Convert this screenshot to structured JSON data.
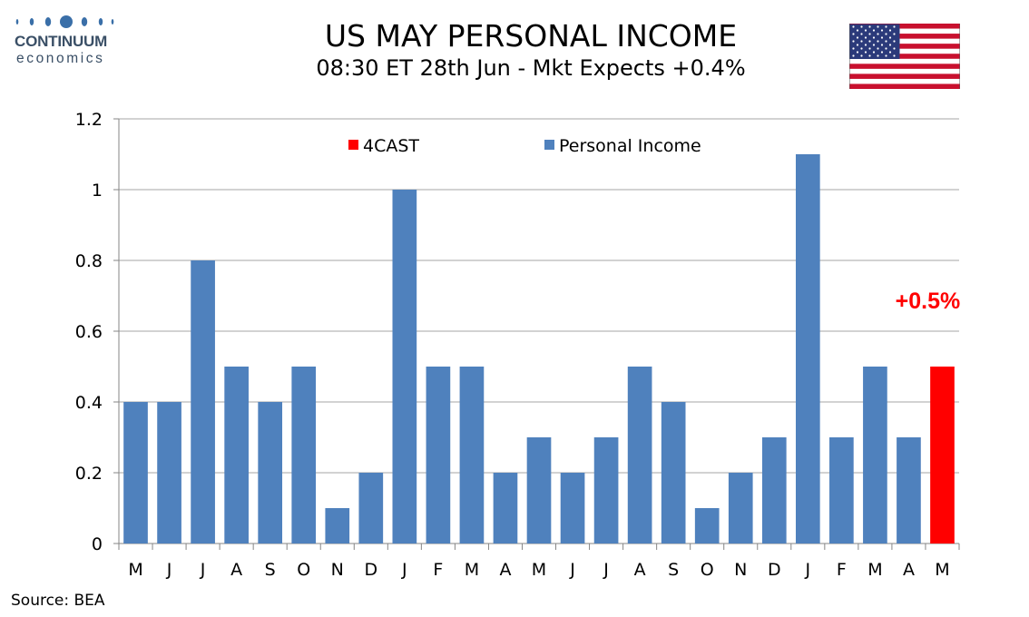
{
  "brand": {
    "name": "CONTINUUM",
    "tagline": "economics"
  },
  "header": {
    "title": "US MAY PERSONAL INCOME",
    "subtitle": "08:30 ET 28th Jun - Mkt Expects +0.4%"
  },
  "flag": {
    "icon": "us-flag-icon"
  },
  "source": "Source: BEA",
  "colors": {
    "actual": "#4f81bd",
    "forecast": "#ff0000",
    "grid": "#a6a6a6",
    "axis": "#868686"
  },
  "chart_data": {
    "type": "bar",
    "title": "",
    "xlabel": "",
    "ylabel": "",
    "ylim": [
      0,
      1.2
    ],
    "yticks": [
      "0",
      "0.2",
      "0.4",
      "0.6",
      "0.8",
      "1",
      "1.2"
    ],
    "ytick_values": [
      0,
      0.2,
      0.4,
      0.6,
      0.8,
      1.0,
      1.2
    ],
    "grid": true,
    "legend_position": "top-center",
    "categories": [
      "M",
      "J",
      "J",
      "A",
      "S",
      "O",
      "N",
      "D",
      "J",
      "F",
      "M",
      "A",
      "M",
      "J",
      "J",
      "A",
      "S",
      "O",
      "N",
      "D",
      "J",
      "F",
      "M",
      "A",
      "M"
    ],
    "series": [
      {
        "name": "Personal Income",
        "color": "#4f81bd",
        "values": [
          0.4,
          0.4,
          0.8,
          0.5,
          0.4,
          0.5,
          0.1,
          0.2,
          1.0,
          0.5,
          0.5,
          0.2,
          0.3,
          0.2,
          0.3,
          0.5,
          0.4,
          0.1,
          0.2,
          0.3,
          1.1,
          0.3,
          0.5,
          0.3,
          null
        ]
      },
      {
        "name": "4CAST",
        "color": "#ff0000",
        "values": [
          null,
          null,
          null,
          null,
          null,
          null,
          null,
          null,
          null,
          null,
          null,
          null,
          null,
          null,
          null,
          null,
          null,
          null,
          null,
          null,
          null,
          null,
          null,
          null,
          0.5
        ]
      }
    ],
    "annotations": [
      {
        "text": "+0.5%",
        "category_index": 24,
        "value": 0.5
      }
    ]
  }
}
